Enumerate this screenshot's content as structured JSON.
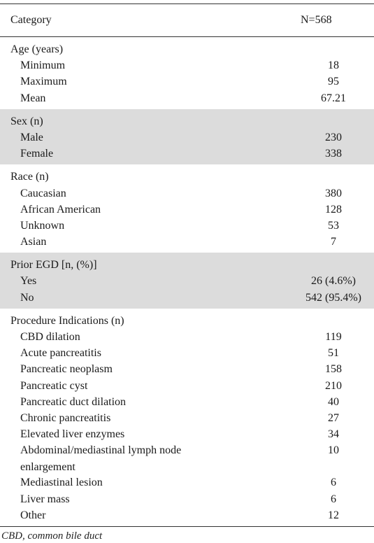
{
  "table": {
    "header": {
      "category": "Category",
      "n": "N=568"
    },
    "groups": [
      {
        "title": "Age (years)",
        "shaded": false,
        "rows": [
          {
            "label": "Minimum",
            "value": "18"
          },
          {
            "label": "Maximum",
            "value": "95"
          },
          {
            "label": "Mean",
            "value": "67.21"
          }
        ]
      },
      {
        "title": "Sex (n)",
        "shaded": true,
        "rows": [
          {
            "label": "Male",
            "value": "230"
          },
          {
            "label": "Female",
            "value": "338"
          }
        ]
      },
      {
        "title": "Race (n)",
        "shaded": false,
        "rows": [
          {
            "label": "Caucasian",
            "value": "380"
          },
          {
            "label": "African American",
            "value": "128"
          },
          {
            "label": "Unknown",
            "value": "53"
          },
          {
            "label": "Asian",
            "value": "7"
          }
        ]
      },
      {
        "title": "Prior EGD [n, (%)]",
        "shaded": true,
        "rows": [
          {
            "label": "Yes",
            "value": "26 (4.6%)"
          },
          {
            "label": "No",
            "value": "542 (95.4%)"
          }
        ]
      },
      {
        "title": "Procedure Indications (n)",
        "shaded": false,
        "rows": [
          {
            "label": "CBD dilation",
            "value": "119"
          },
          {
            "label": "Acute pancreatitis",
            "value": "51"
          },
          {
            "label": "Pancreatic neoplasm",
            "value": "158"
          },
          {
            "label": "Pancreatic cyst",
            "value": "210"
          },
          {
            "label": "Pancreatic duct dilation",
            "value": "40"
          },
          {
            "label": "Chronic pancreatitis",
            "value": "27"
          },
          {
            "label": "Elevated liver enzymes",
            "value": "34"
          },
          {
            "label": "Abdominal/mediastinal lymph node",
            "label2": "enlargement",
            "value": "10"
          },
          {
            "label": "Mediastinal lesion",
            "value": "6"
          },
          {
            "label": "Liver mass",
            "value": "6"
          },
          {
            "label": "Other",
            "value": "12"
          }
        ]
      }
    ]
  },
  "footnote": "CBD, common bile duct"
}
